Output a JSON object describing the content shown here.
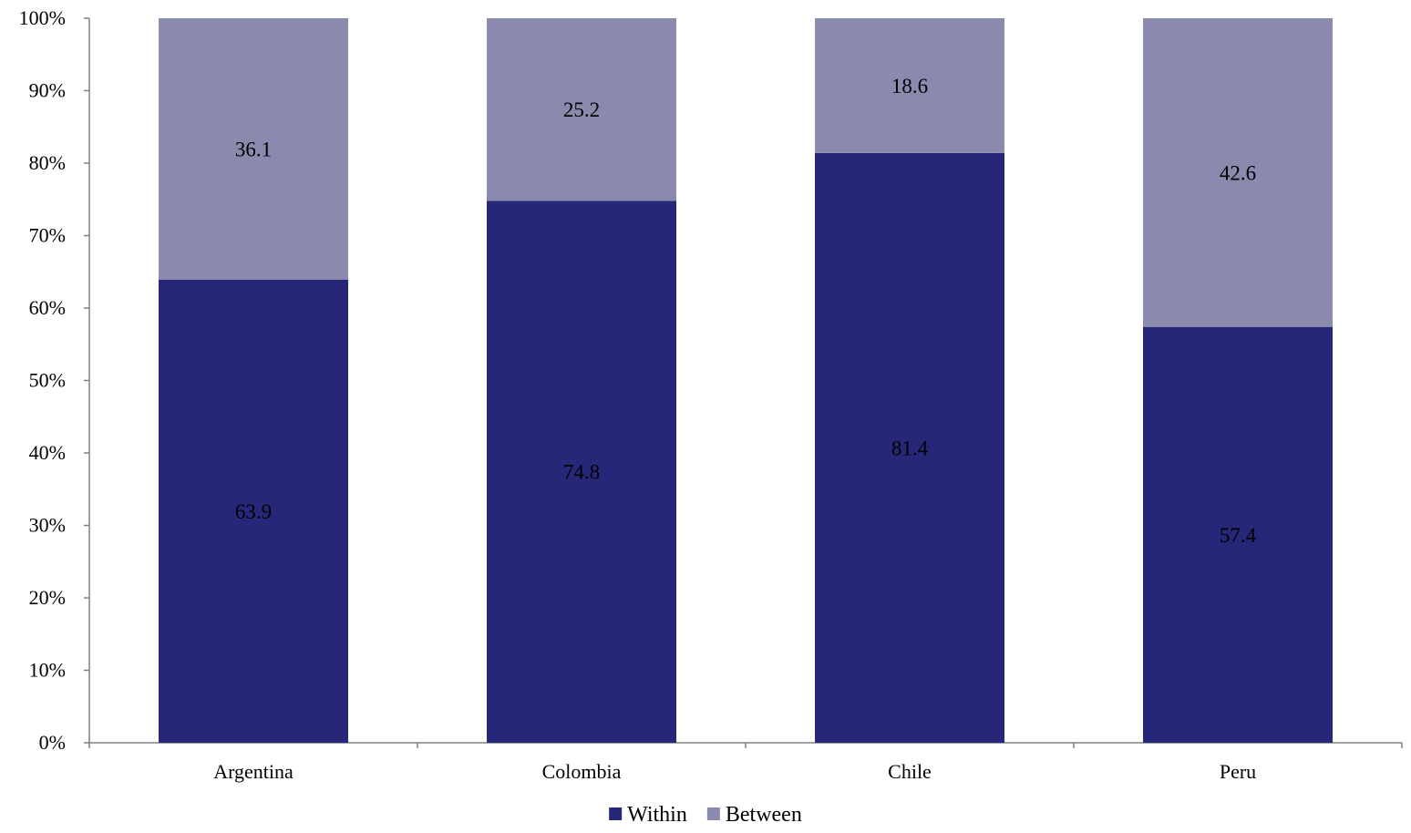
{
  "chart_data": {
    "type": "bar",
    "stacked": true,
    "percent_stacked": true,
    "title": "",
    "xlabel": "",
    "ylabel": "",
    "categories": [
      "Argentina",
      "Colombia",
      "Chile",
      "Peru"
    ],
    "series": [
      {
        "name": "Within",
        "values": [
          63.9,
          74.8,
          81.4,
          57.4
        ],
        "labels": [
          "63.9",
          "74.8",
          "81.4",
          "57.4"
        ],
        "color": "#262778"
      },
      {
        "name": "Between",
        "values": [
          36.1,
          25.2,
          18.6,
          42.6
        ],
        "labels": [
          "36.1",
          "25.2",
          "18.6",
          "42.6"
        ],
        "color": "#8a8aae"
      }
    ],
    "ylim": [
      0,
      100
    ],
    "yticks": [
      0,
      10,
      20,
      30,
      40,
      50,
      60,
      70,
      80,
      90,
      100
    ],
    "ytick_labels": [
      "0%",
      "10%",
      "20%",
      "30%",
      "40%",
      "50%",
      "60%",
      "70%",
      "80%",
      "90%",
      "100%"
    ],
    "grid": false,
    "legend_position": "bottom",
    "axis_color": "#808080"
  }
}
